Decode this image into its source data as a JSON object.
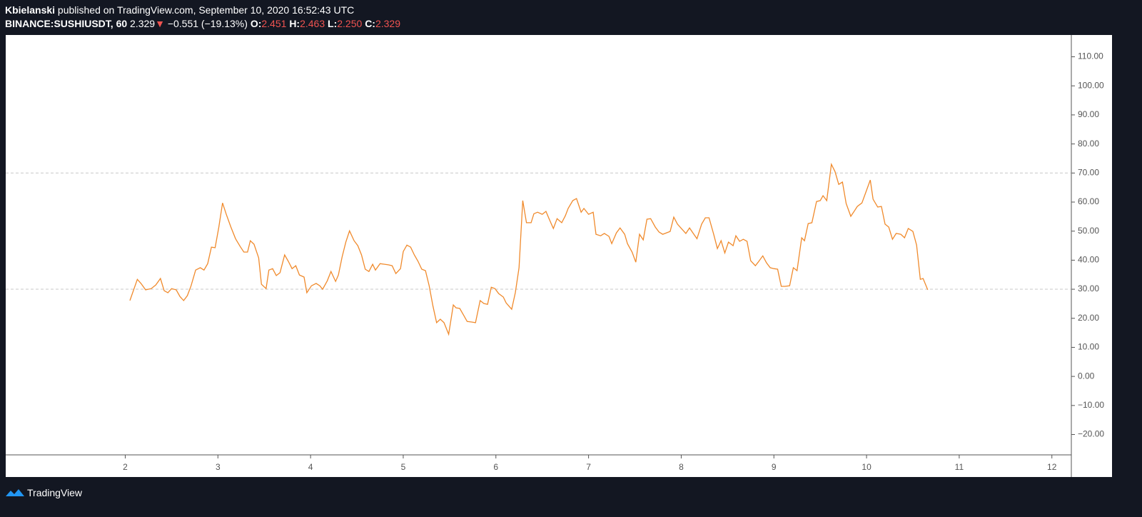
{
  "header": {
    "publisher": "Kbielanski",
    "published_text": "published on TradingView.com, September 10, 2020 16:52:43 UTC",
    "symbol": "BINANCE:SUSHIUSDT, 60",
    "last": "2.329",
    "change": "−0.551 (−19.13%)",
    "open_label": "O:",
    "open": "2.451",
    "high_label": "H:",
    "high": "2.463",
    "low_label": "L:",
    "low": "2.250",
    "close_label": "C:",
    "close": "2.329"
  },
  "footer": {
    "brand": "TradingView"
  },
  "chart_data": {
    "type": "line",
    "color": "#f08a2c",
    "x": [
      2.05,
      2.13,
      2.17,
      2.22,
      2.28,
      2.33,
      2.38,
      2.42,
      2.46,
      2.5,
      2.55,
      2.59,
      2.63,
      2.67,
      2.71,
      2.76,
      2.81,
      2.85,
      2.89,
      2.93,
      2.97,
      3.01,
      3.05,
      3.09,
      3.14,
      3.19,
      3.24,
      3.28,
      3.32,
      3.35,
      3.39,
      3.44,
      3.47,
      3.52,
      3.55,
      3.59,
      3.63,
      3.67,
      3.72,
      3.76,
      3.8,
      3.84,
      3.88,
      3.93,
      3.96,
      4.01,
      4.06,
      4.1,
      4.13,
      4.18,
      4.22,
      4.27,
      4.3,
      4.34,
      4.38,
      4.42,
      4.47,
      4.51,
      4.55,
      4.59,
      4.63,
      4.67,
      4.7,
      4.75,
      4.8,
      4.84,
      4.88,
      4.92,
      4.97,
      5.0,
      5.04,
      5.08,
      5.12,
      5.16,
      5.2,
      5.24,
      5.28,
      5.32,
      5.36,
      5.4,
      5.44,
      5.49,
      5.54,
      5.57,
      5.61,
      5.65,
      5.69,
      5.74,
      5.78,
      5.83,
      5.87,
      5.91,
      5.95,
      5.99,
      6.03,
      6.08,
      6.11,
      6.17,
      6.21,
      6.25,
      6.29,
      6.33,
      6.38,
      6.41,
      6.45,
      6.5,
      6.54,
      6.58,
      6.62,
      6.66,
      6.71,
      6.75,
      6.78,
      6.83,
      6.87,
      6.92,
      6.95,
      7.0,
      7.05,
      7.08,
      7.13,
      7.17,
      7.22,
      7.25,
      7.3,
      7.34,
      7.39,
      7.42,
      7.47,
      7.51,
      7.55,
      7.59,
      7.63,
      7.67,
      7.72,
      7.76,
      7.8,
      7.84,
      7.88,
      7.92,
      7.96,
      8.01,
      8.05,
      8.09,
      8.13,
      8.17,
      8.22,
      8.26,
      8.3,
      8.35,
      8.39,
      8.43,
      8.47,
      8.51,
      8.56,
      8.59,
      8.63,
      8.67,
      8.71,
      8.75,
      8.8,
      8.83,
      8.88,
      8.92,
      8.96,
      9.0,
      9.04,
      9.08,
      9.12,
      9.17,
      9.21,
      9.25,
      9.3,
      9.33,
      9.37,
      9.41,
      9.46,
      9.5,
      9.53,
      9.57,
      9.62,
      9.66,
      9.7,
      9.74,
      9.78,
      9.83,
      9.87,
      9.9,
      9.95,
      9.99,
      10.04,
      10.07,
      10.12,
      10.16,
      10.2,
      10.24,
      10.28,
      10.32,
      10.37,
      10.41,
      10.45,
      10.5,
      10.54,
      10.58,
      10.61,
      10.66
    ],
    "values": [
      26.1,
      33.4,
      32.0,
      29.8,
      30.2,
      31.5,
      33.7,
      29.5,
      28.8,
      30.2,
      29.8,
      27.5,
      26.1,
      27.8,
      31.2,
      36.6,
      37.4,
      36.6,
      38.8,
      44.5,
      44.3,
      51.4,
      59.7,
      55.8,
      51.4,
      47.4,
      44.7,
      42.8,
      42.8,
      46.7,
      45.5,
      40.8,
      31.7,
      30.2,
      36.6,
      37.1,
      34.7,
      35.7,
      41.8,
      39.6,
      37.1,
      38.1,
      34.9,
      34.2,
      28.8,
      31.2,
      32.0,
      31.2,
      30.0,
      32.9,
      36.1,
      32.7,
      34.9,
      41.1,
      46.2,
      50.1,
      46.7,
      45.0,
      41.8,
      36.9,
      36.1,
      38.6,
      36.6,
      38.8,
      38.6,
      38.4,
      38.1,
      35.4,
      37.1,
      43.0,
      45.2,
      44.5,
      41.8,
      39.6,
      36.9,
      36.4,
      31.2,
      24.3,
      18.5,
      19.7,
      18.5,
      14.5,
      24.6,
      23.6,
      23.4,
      21.2,
      18.9,
      18.7,
      18.5,
      26.1,
      25.1,
      24.8,
      30.7,
      30.2,
      28.5,
      27.3,
      25.3,
      23.1,
      28.8,
      37.4,
      60.5,
      52.9,
      52.9,
      56.0,
      56.5,
      55.8,
      56.8,
      53.8,
      50.9,
      54.3,
      52.9,
      55.3,
      57.8,
      60.5,
      61.2,
      56.5,
      57.8,
      55.8,
      56.5,
      48.9,
      48.4,
      49.2,
      48.2,
      45.7,
      49.4,
      51.1,
      48.9,
      45.7,
      42.8,
      39.3,
      48.9,
      47.0,
      54.1,
      54.3,
      51.4,
      49.7,
      48.9,
      49.4,
      49.9,
      54.8,
      52.4,
      50.6,
      49.2,
      51.1,
      49.2,
      47.4,
      52.4,
      54.6,
      54.6,
      48.9,
      44.0,
      46.7,
      42.5,
      46.2,
      45.0,
      48.4,
      46.5,
      47.2,
      46.5,
      39.8,
      38.1,
      39.3,
      41.5,
      39.1,
      37.4,
      37.1,
      36.9,
      31.0,
      31.0,
      31.2,
      37.4,
      36.4,
      47.7,
      46.7,
      52.6,
      52.9,
      60.2,
      60.5,
      62.2,
      60.5,
      73.0,
      70.5,
      66.1,
      66.9,
      59.5,
      55.1,
      57.0,
      58.5,
      59.7,
      63.2,
      67.6,
      61.0,
      58.3,
      58.5,
      52.4,
      51.4,
      47.2,
      49.2,
      48.9,
      47.7,
      50.9,
      49.9,
      45.2,
      33.4,
      33.7,
      29.8
    ],
    "xlim": [
      0.71,
      12.21
    ],
    "xticks": [
      2,
      3,
      4,
      5,
      6,
      7,
      8,
      9,
      10,
      11,
      12
    ],
    "ylim": [
      -27.0,
      117.5
    ],
    "yticks": [
      {
        "value": 110,
        "label": "110.00"
      },
      {
        "value": 100,
        "label": "100.00"
      },
      {
        "value": 90,
        "label": "90.00"
      },
      {
        "value": 80,
        "label": "80.00"
      },
      {
        "value": 70,
        "label": "70.00"
      },
      {
        "value": 60,
        "label": "60.00"
      },
      {
        "value": 50,
        "label": "50.00"
      },
      {
        "value": 40,
        "label": "40.00"
      },
      {
        "value": 30,
        "label": "30.00"
      },
      {
        "value": 20,
        "label": "20.00"
      },
      {
        "value": 10,
        "label": "10.00"
      },
      {
        "value": 0,
        "label": "0.00"
      },
      {
        "value": -10,
        "label": "−10.00"
      },
      {
        "value": -20,
        "label": "−20.00"
      }
    ],
    "hlines": [
      70,
      30
    ]
  }
}
